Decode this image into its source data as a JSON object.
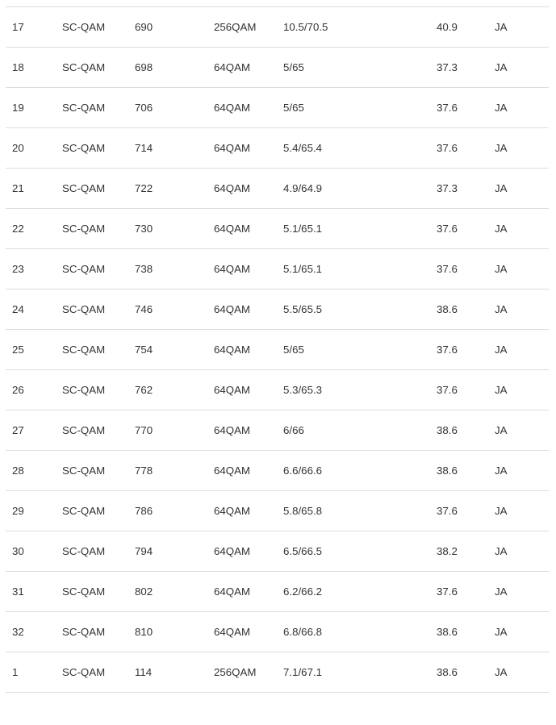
{
  "theme": {
    "background": "#ffffff",
    "text_color": "#333333",
    "divider_color": "#dddddd"
  },
  "channel_table": {
    "rows": [
      {
        "channel_id": "17",
        "type": "SC-QAM",
        "frequency": "690",
        "modulation": "256QAM",
        "power": "10.5/70.5",
        "snr": "40.9",
        "locked": "JA"
      },
      {
        "channel_id": "18",
        "type": "SC-QAM",
        "frequency": "698",
        "modulation": "64QAM",
        "power": "5/65",
        "snr": "37.3",
        "locked": "JA"
      },
      {
        "channel_id": "19",
        "type": "SC-QAM",
        "frequency": "706",
        "modulation": "64QAM",
        "power": "5/65",
        "snr": "37.6",
        "locked": "JA"
      },
      {
        "channel_id": "20",
        "type": "SC-QAM",
        "frequency": "714",
        "modulation": "64QAM",
        "power": "5.4/65.4",
        "snr": "37.6",
        "locked": "JA"
      },
      {
        "channel_id": "21",
        "type": "SC-QAM",
        "frequency": "722",
        "modulation": "64QAM",
        "power": "4.9/64.9",
        "snr": "37.3",
        "locked": "JA"
      },
      {
        "channel_id": "22",
        "type": "SC-QAM",
        "frequency": "730",
        "modulation": "64QAM",
        "power": "5.1/65.1",
        "snr": "37.6",
        "locked": "JA"
      },
      {
        "channel_id": "23",
        "type": "SC-QAM",
        "frequency": "738",
        "modulation": "64QAM",
        "power": "5.1/65.1",
        "snr": "37.6",
        "locked": "JA"
      },
      {
        "channel_id": "24",
        "type": "SC-QAM",
        "frequency": "746",
        "modulation": "64QAM",
        "power": "5.5/65.5",
        "snr": "38.6",
        "locked": "JA"
      },
      {
        "channel_id": "25",
        "type": "SC-QAM",
        "frequency": "754",
        "modulation": "64QAM",
        "power": "5/65",
        "snr": "37.6",
        "locked": "JA"
      },
      {
        "channel_id": "26",
        "type": "SC-QAM",
        "frequency": "762",
        "modulation": "64QAM",
        "power": "5.3/65.3",
        "snr": "37.6",
        "locked": "JA"
      },
      {
        "channel_id": "27",
        "type": "SC-QAM",
        "frequency": "770",
        "modulation": "64QAM",
        "power": "6/66",
        "snr": "38.6",
        "locked": "JA"
      },
      {
        "channel_id": "28",
        "type": "SC-QAM",
        "frequency": "778",
        "modulation": "64QAM",
        "power": "6.6/66.6",
        "snr": "38.6",
        "locked": "JA"
      },
      {
        "channel_id": "29",
        "type": "SC-QAM",
        "frequency": "786",
        "modulation": "64QAM",
        "power": "5.8/65.8",
        "snr": "37.6",
        "locked": "JA"
      },
      {
        "channel_id": "30",
        "type": "SC-QAM",
        "frequency": "794",
        "modulation": "64QAM",
        "power": "6.5/66.5",
        "snr": "38.2",
        "locked": "JA"
      },
      {
        "channel_id": "31",
        "type": "SC-QAM",
        "frequency": "802",
        "modulation": "64QAM",
        "power": "6.2/66.2",
        "snr": "37.6",
        "locked": "JA"
      },
      {
        "channel_id": "32",
        "type": "SC-QAM",
        "frequency": "810",
        "modulation": "64QAM",
        "power": "6.8/66.8",
        "snr": "38.6",
        "locked": "JA"
      },
      {
        "channel_id": "1",
        "type": "SC-QAM",
        "frequency": "114",
        "modulation": "256QAM",
        "power": "7.1/67.1",
        "snr": "38.6",
        "locked": "JA"
      }
    ]
  }
}
